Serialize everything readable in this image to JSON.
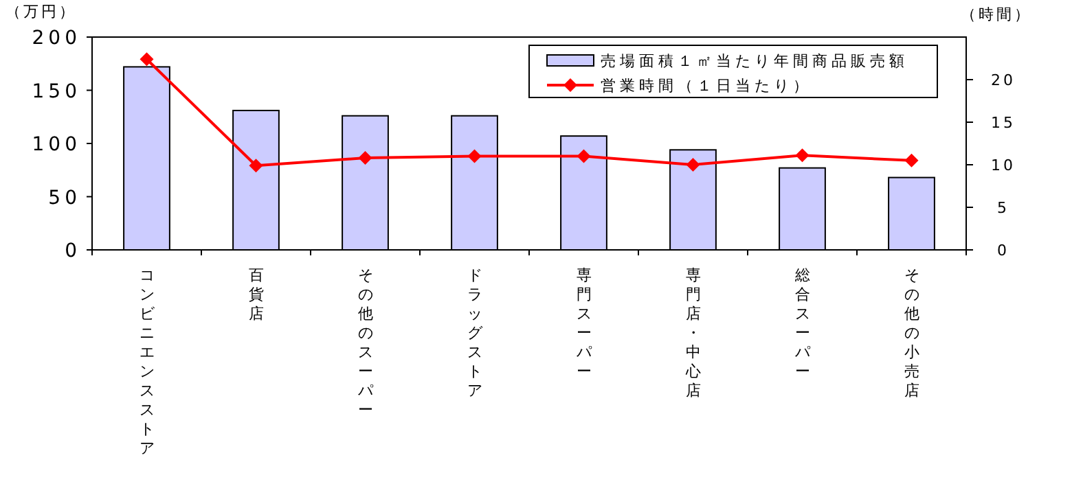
{
  "chart_data": {
    "type": "bar",
    "ylabel": "（万円）",
    "y2label": "（時間）",
    "categories": [
      "コンビニエンスストア",
      "百貨店",
      "その他のスーパー",
      "ドラッグストア",
      "専門スーパー",
      "専門店・中心店",
      "総合スーパー",
      "その他の小売店"
    ],
    "series": [
      {
        "name": "売場面積１㎡当たり年間商品販売額",
        "color": "#ccccff",
        "values": [
          172,
          131,
          126,
          126,
          107,
          94,
          77,
          68
        ]
      },
      {
        "name": "営業時間（１日当たり）",
        "type": "line",
        "axis": "y2",
        "color": "#ff0000",
        "marker": "diamond",
        "values": [
          22.4,
          9.9,
          10.8,
          11.0,
          11.0,
          10.0,
          11.1,
          10.5
        ]
      }
    ],
    "ylim": [
      0,
      200
    ],
    "yticks": [
      0,
      50,
      100,
      150,
      200
    ],
    "y2lim": [
      0,
      25
    ],
    "y2ticks": [
      0,
      5,
      10,
      15,
      20
    ],
    "legend": "top right",
    "grid": false
  }
}
